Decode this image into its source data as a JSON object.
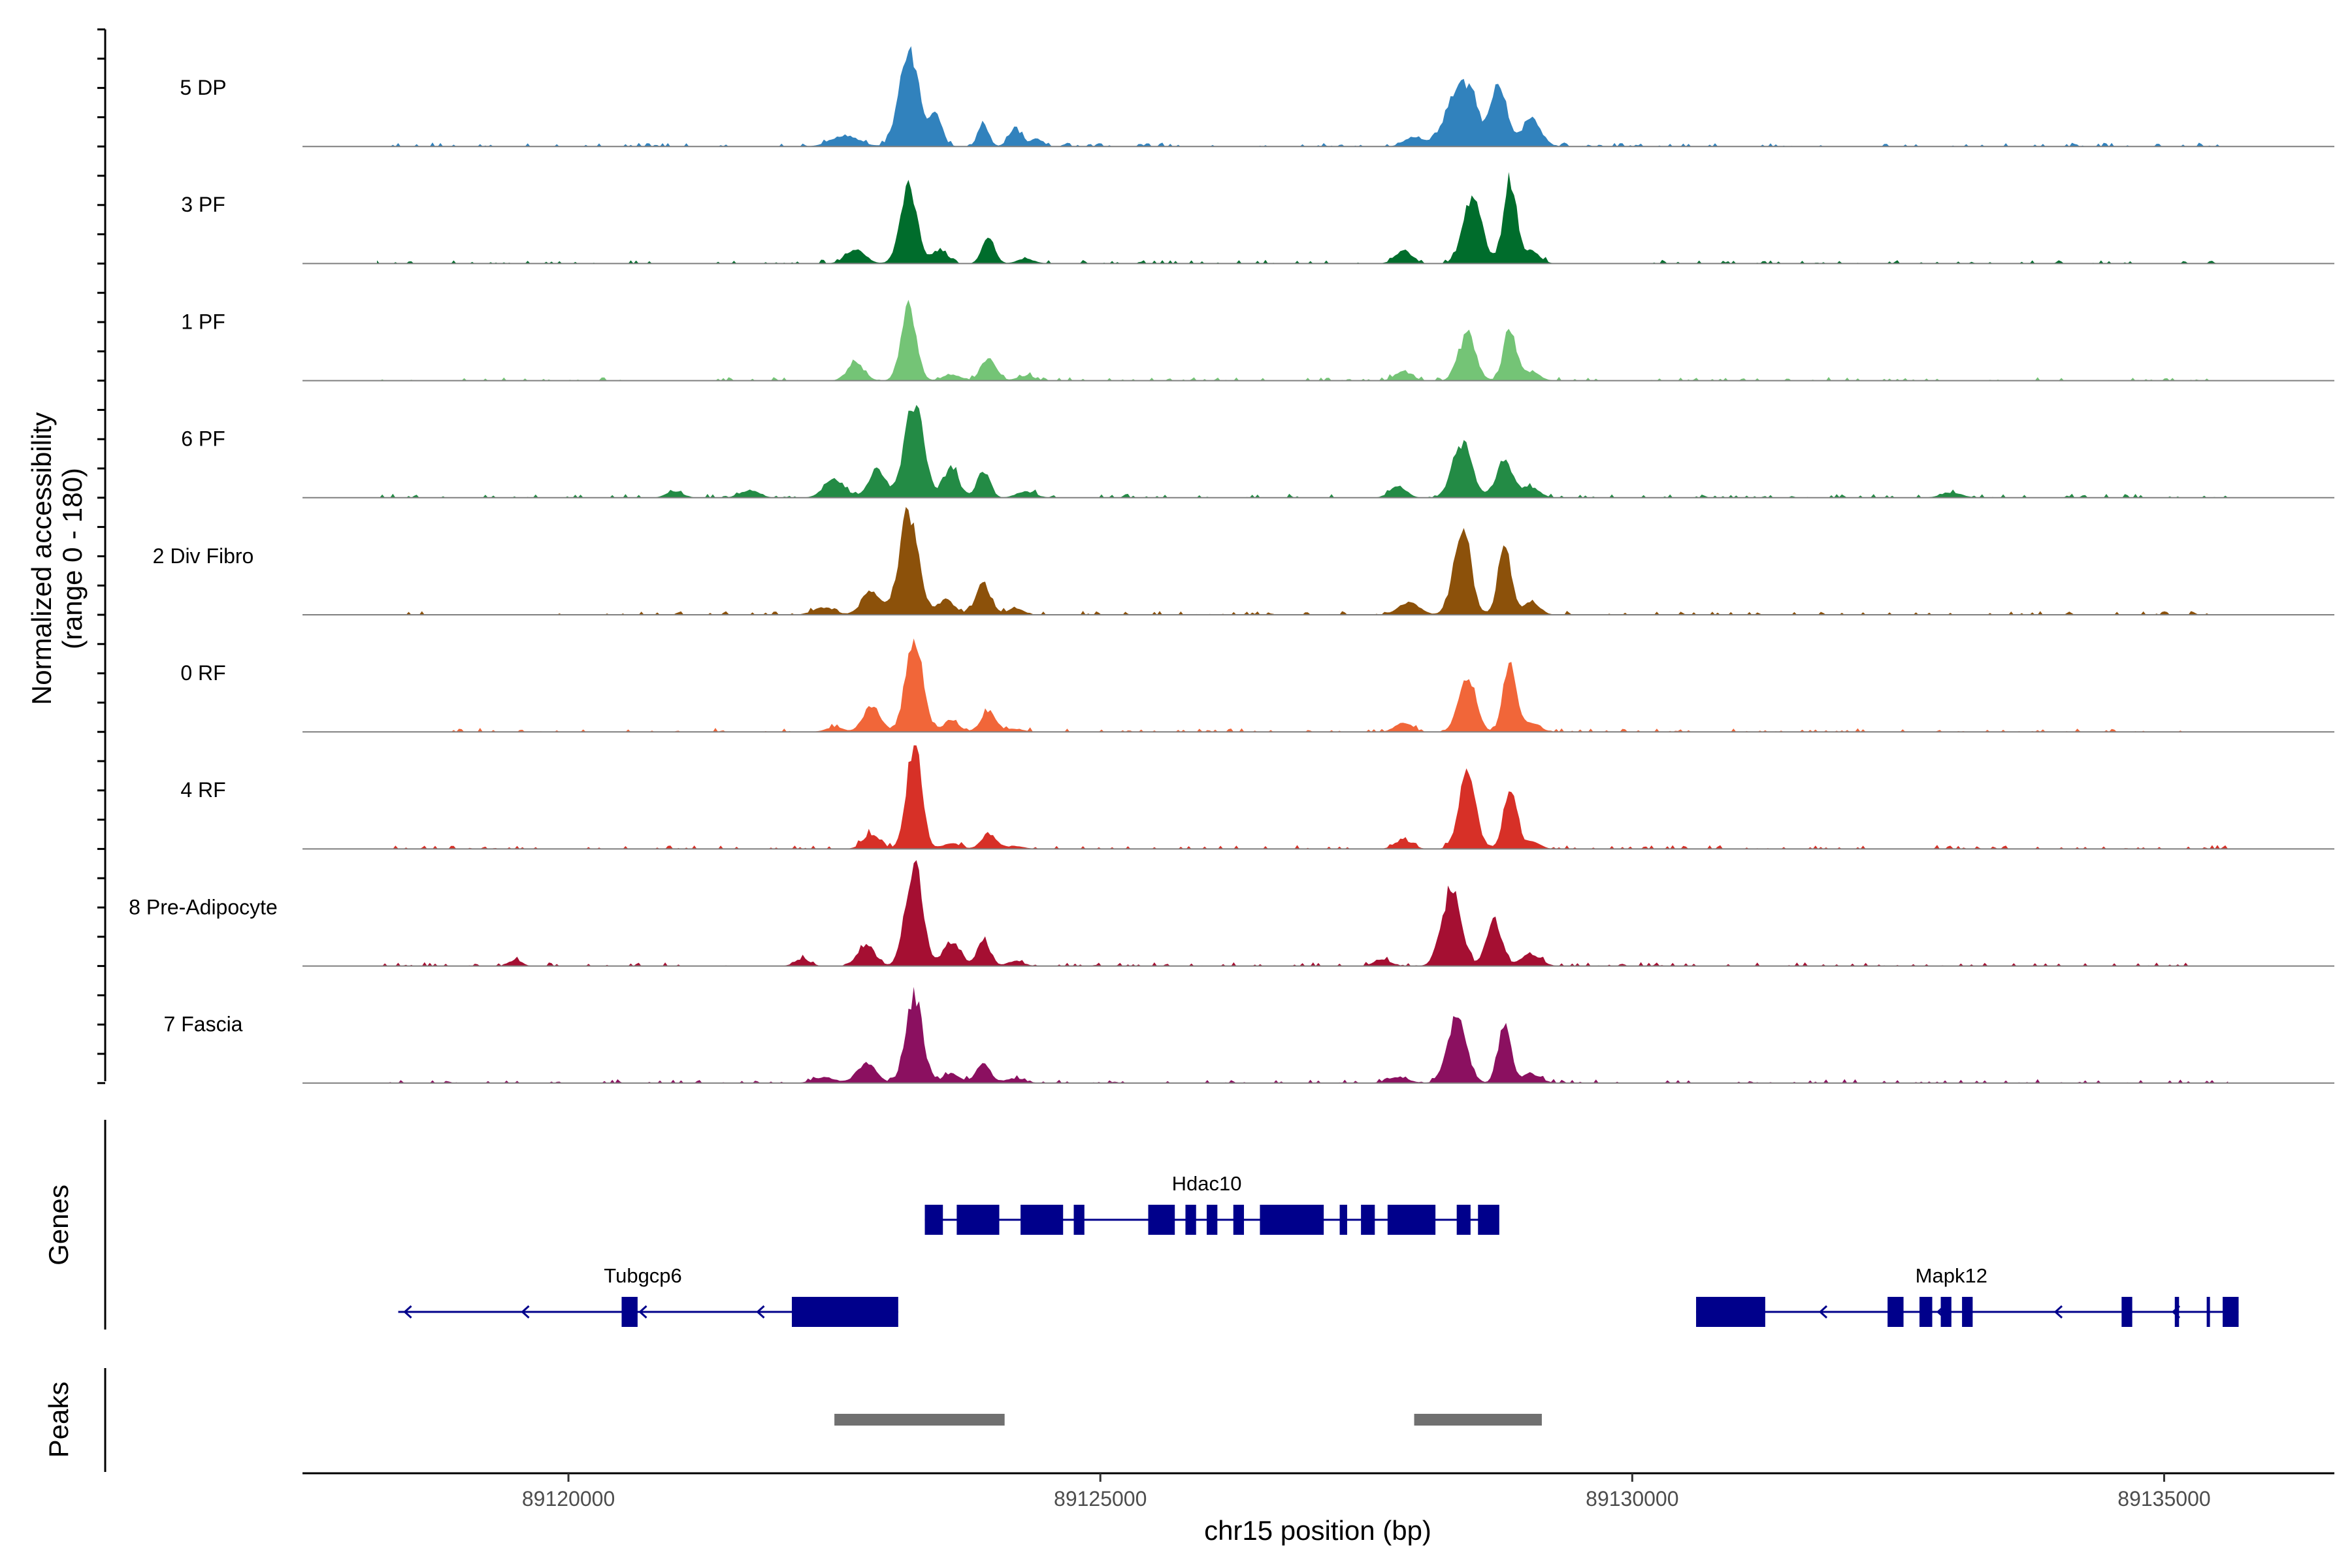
{
  "chart_data": {
    "type": "area",
    "chromosome": "chr15",
    "xlabel": "chr15 position (bp)",
    "ylabel": "Normalized accessibility",
    "ylabel_range": "(range 0 - 180)",
    "xlim": [
      89117500,
      89136600
    ],
    "ylim": [
      0,
      180
    ],
    "x_ticks": [
      89120000,
      89125000,
      89130000,
      89135000
    ],
    "x_tick_labels": [
      "89120000",
      "89125000",
      "89130000",
      "89135000"
    ],
    "tracks": [
      {
        "name": "5 DP",
        "color": "#3182BD",
        "peaks": [
          [
            89122600,
            18,
            130
          ],
          [
            89123200,
            165,
            90
          ],
          [
            89123450,
            55,
            60
          ],
          [
            89123900,
            40,
            50
          ],
          [
            89124200,
            30,
            60
          ],
          [
            89124400,
            12,
            60
          ],
          [
            89127950,
            15,
            90
          ],
          [
            89128400,
            110,
            130
          ],
          [
            89128750,
            105,
            70
          ],
          [
            89129050,
            45,
            90
          ]
        ]
      },
      {
        "name": "3 PF",
        "color": "#006D2C",
        "peaks": [
          [
            89122700,
            25,
            90
          ],
          [
            89123200,
            125,
            80
          ],
          [
            89123500,
            22,
            70
          ],
          [
            89123950,
            40,
            60
          ],
          [
            89124300,
            8,
            80
          ],
          [
            89127850,
            20,
            80
          ],
          [
            89128500,
            105,
            90
          ],
          [
            89128850,
            135,
            60
          ],
          [
            89129050,
            20,
            80
          ]
        ]
      },
      {
        "name": "1 PF",
        "color": "#74C476",
        "peaks": [
          [
            89122700,
            28,
            80
          ],
          [
            89123200,
            125,
            70
          ],
          [
            89123600,
            10,
            80
          ],
          [
            89123950,
            35,
            70
          ],
          [
            89124300,
            8,
            80
          ],
          [
            89127850,
            15,
            80
          ],
          [
            89128450,
            75,
            80
          ],
          [
            89128850,
            85,
            60
          ],
          [
            89129050,
            15,
            80
          ]
        ]
      },
      {
        "name": "6 PF",
        "color": "#238B45",
        "peaks": [
          [
            89121000,
            10,
            80
          ],
          [
            89121700,
            12,
            90
          ],
          [
            89122500,
            28,
            100
          ],
          [
            89122900,
            45,
            80
          ],
          [
            89123250,
            150,
            90
          ],
          [
            89123600,
            50,
            70
          ],
          [
            89123900,
            45,
            60
          ],
          [
            89124300,
            10,
            90
          ],
          [
            89127800,
            18,
            80
          ],
          [
            89128400,
            90,
            90
          ],
          [
            89128800,
            60,
            80
          ],
          [
            89129050,
            18,
            80
          ],
          [
            89133000,
            8,
            100
          ]
        ]
      },
      {
        "name": "2 Div Fibro",
        "color": "#8C510A",
        "peaks": [
          [
            89122400,
            12,
            100
          ],
          [
            89122850,
            38,
            90
          ],
          [
            89123200,
            165,
            90
          ],
          [
            89123550,
            25,
            80
          ],
          [
            89123900,
            50,
            70
          ],
          [
            89124200,
            10,
            80
          ],
          [
            89127900,
            20,
            100
          ],
          [
            89128400,
            145,
            80
          ],
          [
            89128800,
            125,
            60
          ],
          [
            89129050,
            20,
            80
          ]
        ]
      },
      {
        "name": "0 RF",
        "color": "#F16639",
        "peaks": [
          [
            89122500,
            8,
            80
          ],
          [
            89122850,
            42,
            80
          ],
          [
            89123250,
            150,
            80
          ],
          [
            89123600,
            20,
            70
          ],
          [
            89123950,
            35,
            70
          ],
          [
            89124200,
            5,
            80
          ],
          [
            89127850,
            15,
            80
          ],
          [
            89128450,
            90,
            80
          ],
          [
            89128850,
            120,
            60
          ],
          [
            89129050,
            15,
            80
          ]
        ]
      },
      {
        "name": "4 RF",
        "color": "#D73027",
        "peaks": [
          [
            89122850,
            25,
            80
          ],
          [
            89123250,
            170,
            70
          ],
          [
            89123600,
            10,
            80
          ],
          [
            89123950,
            25,
            70
          ],
          [
            89124200,
            5,
            80
          ],
          [
            89127850,
            15,
            80
          ],
          [
            89128450,
            120,
            80
          ],
          [
            89128850,
            100,
            60
          ],
          [
            89129050,
            12,
            80
          ]
        ]
      },
      {
        "name": "8 Pre-Adipocyte",
        "color": "#A50F32",
        "peaks": [
          [
            89119500,
            10,
            60
          ],
          [
            89122200,
            12,
            70
          ],
          [
            89122800,
            35,
            80
          ],
          [
            89123250,
            170,
            80
          ],
          [
            89123600,
            40,
            80
          ],
          [
            89123900,
            42,
            60
          ],
          [
            89124200,
            8,
            80
          ],
          [
            89127650,
            10,
            80
          ],
          [
            89128300,
            125,
            90
          ],
          [
            89128700,
            80,
            70
          ],
          [
            89129050,
            20,
            90
          ]
        ]
      },
      {
        "name": "7 Fascia",
        "color": "#8B1060",
        "peaks": [
          [
            89122400,
            10,
            100
          ],
          [
            89122800,
            32,
            90
          ],
          [
            89123250,
            140,
            80
          ],
          [
            89123600,
            15,
            80
          ],
          [
            89123900,
            30,
            70
          ],
          [
            89124200,
            8,
            90
          ],
          [
            89127800,
            10,
            100
          ],
          [
            89128350,
            105,
            90
          ],
          [
            89128800,
            90,
            60
          ],
          [
            89129050,
            15,
            90
          ]
        ]
      }
    ],
    "genes_label": "Genes",
    "genes": [
      {
        "name": "Hdac10",
        "start": 89123350,
        "end": 89128700,
        "strand": "-",
        "row": 0,
        "label_pos": 89126000,
        "exons": [
          [
            89123350,
            89123520
          ],
          [
            89123650,
            89124050
          ],
          [
            89124250,
            89124650
          ],
          [
            89124750,
            89124850
          ],
          [
            89125450,
            89125700
          ],
          [
            89125800,
            89125900
          ],
          [
            89126000,
            89126100
          ],
          [
            89126250,
            89126350
          ],
          [
            89126500,
            89127100
          ],
          [
            89127250,
            89127320
          ],
          [
            89127450,
            89127580
          ],
          [
            89127700,
            89128150
          ],
          [
            89128350,
            89128480
          ],
          [
            89128550,
            89128750
          ]
        ]
      },
      {
        "name": "Tubgcp6",
        "start": 89118400,
        "end": 89123100,
        "strand": "-",
        "row": 1,
        "label_pos": 89120700,
        "exons": [
          [
            89120500,
            89120650
          ],
          [
            89122100,
            89123100
          ]
        ]
      },
      {
        "name": "Mapk12",
        "start": 89130600,
        "end": 89135700,
        "strand": "-",
        "row": 1,
        "label_pos": 89133000,
        "exons": [
          [
            89130600,
            89131250
          ],
          [
            89132400,
            89132550
          ],
          [
            89132700,
            89132820
          ],
          [
            89132900,
            89133000
          ],
          [
            89133100,
            89133200
          ],
          [
            89134600,
            89134700
          ],
          [
            89135100,
            89135140
          ],
          [
            89135400,
            89135420
          ],
          [
            89135550,
            89135700
          ]
        ]
      }
    ],
    "peaks_label": "Peaks",
    "peak_regions": [
      [
        89122500,
        89124100
      ],
      [
        89127950,
        89129150
      ]
    ]
  },
  "colors": {
    "gene": "#00008B",
    "peak_region": "#707070",
    "axis": "#000000",
    "baseline": "#7f7f7f"
  }
}
